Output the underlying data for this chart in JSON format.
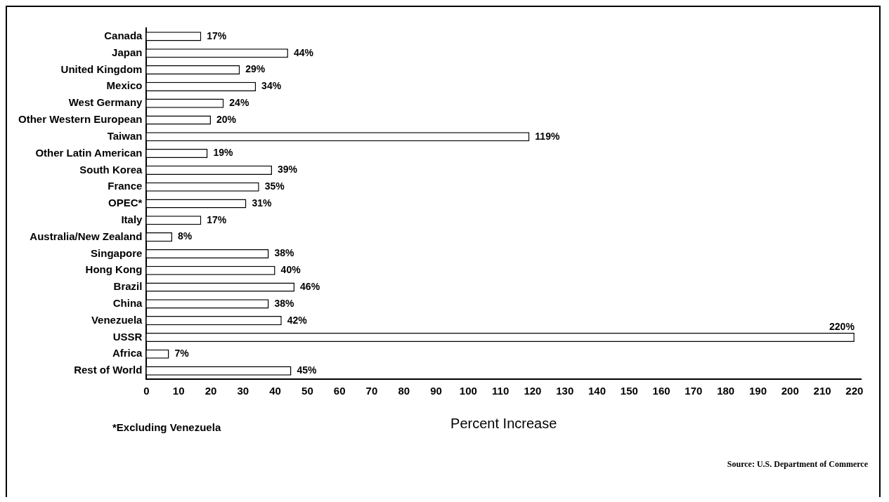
{
  "chart_data": {
    "type": "bar",
    "orientation": "horizontal",
    "categories": [
      "Canada",
      "Japan",
      "United Kingdom",
      "Mexico",
      "West Germany",
      "Other Western European",
      "Taiwan",
      "Other Latin American",
      "South Korea",
      "France",
      "OPEC*",
      "Italy",
      "Australia/New Zealand",
      "Singapore",
      "Hong Kong",
      "Brazil",
      "China",
      "Venezuela",
      "USSR",
      "Africa",
      "Rest of World"
    ],
    "values": [
      17,
      44,
      29,
      34,
      24,
      20,
      119,
      19,
      39,
      35,
      31,
      17,
      8,
      38,
      40,
      46,
      38,
      42,
      220,
      7,
      45
    ],
    "value_labels": [
      "17%",
      "44%",
      "29%",
      "34%",
      "24%",
      "20%",
      "119%",
      "19%",
      "39%",
      "35%",
      "31%",
      "17%",
      "8%",
      "38%",
      "40%",
      "46%",
      "38%",
      "42%",
      "220%",
      "7%",
      "45%"
    ],
    "color": "#ffffff",
    "xlabel": "Percent Increase",
    "xlim": [
      0,
      222
    ],
    "xticks": [
      0,
      10,
      20,
      30,
      40,
      50,
      60,
      70,
      80,
      90,
      100,
      110,
      120,
      130,
      140,
      150,
      160,
      170,
      180,
      190,
      200,
      210,
      220
    ],
    "grid": false,
    "legend": false,
    "annotations": [
      "*Excluding Venezuela",
      "Source: U.S. Department of Commerce"
    ]
  }
}
